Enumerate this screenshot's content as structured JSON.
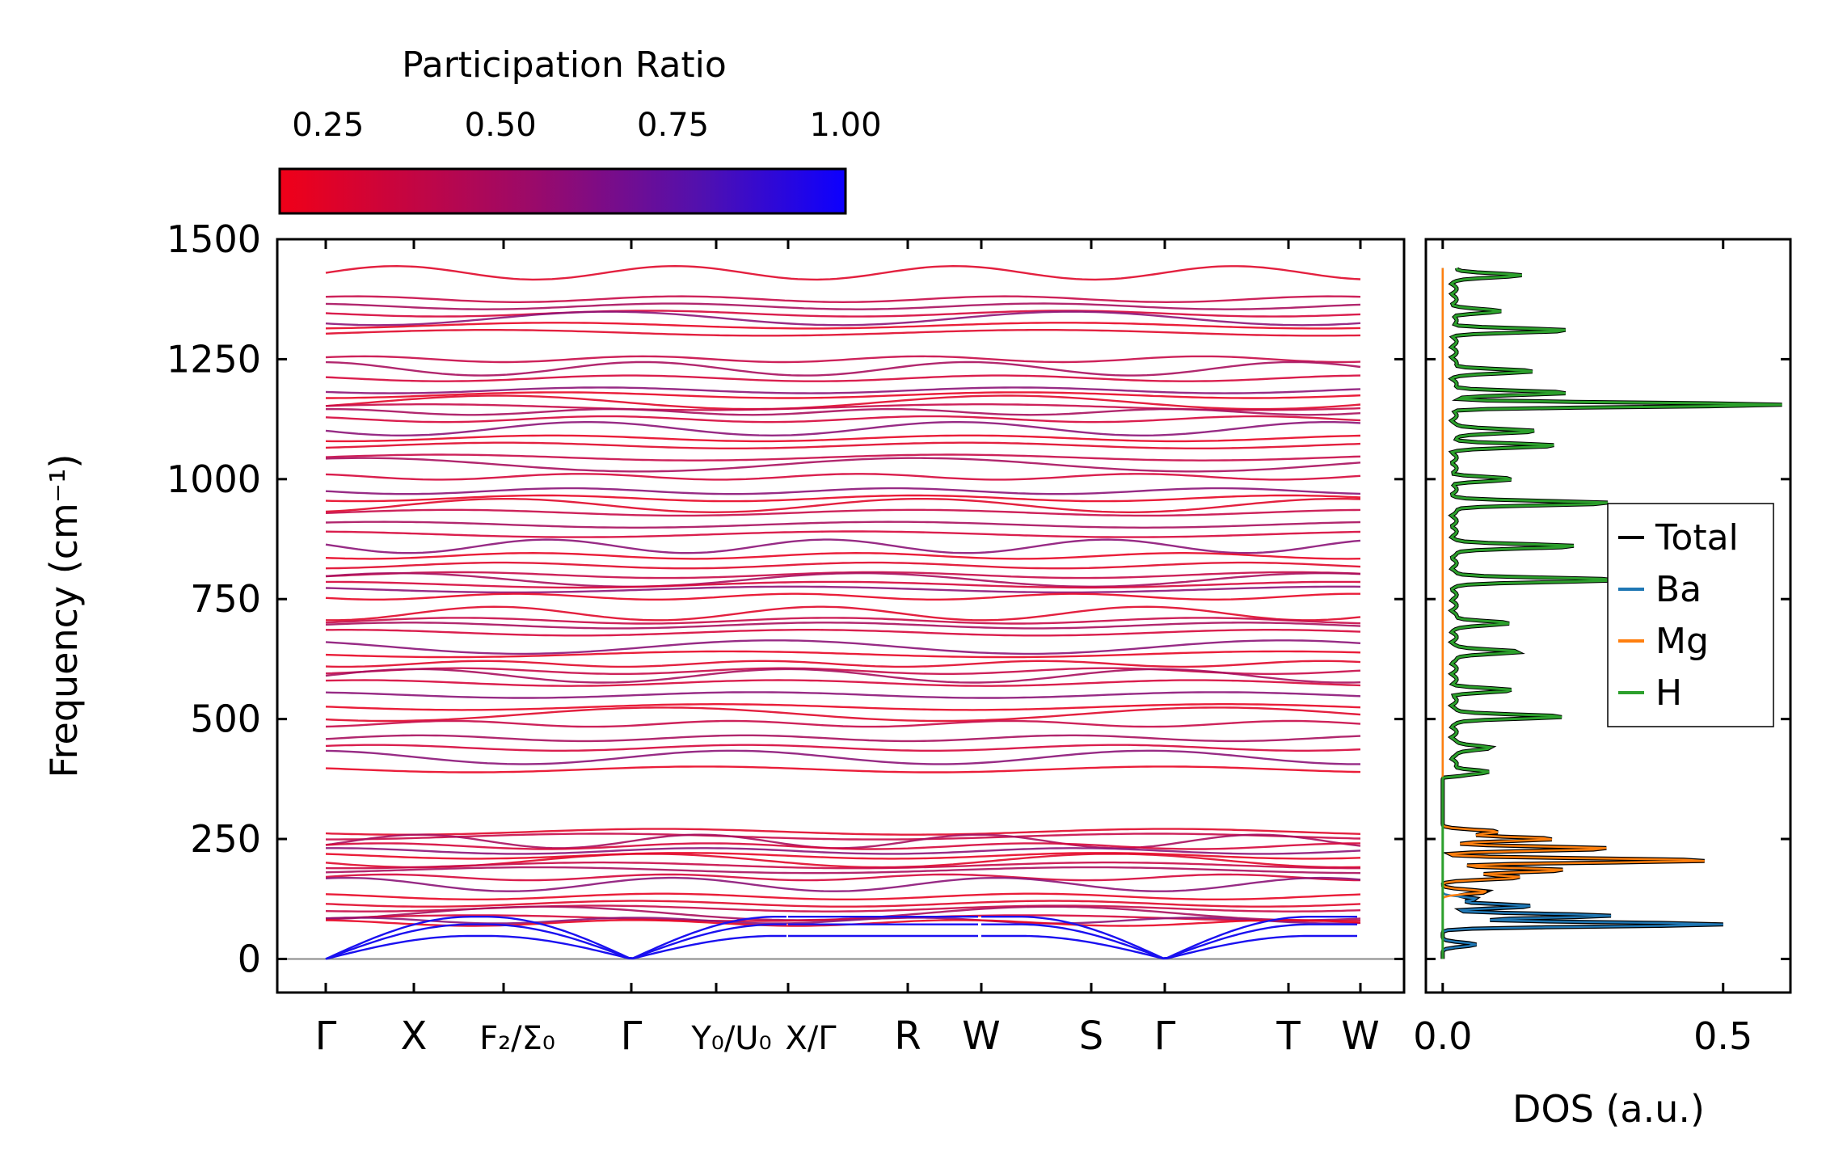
{
  "chart_data": [
    {
      "type": "line",
      "title": "",
      "ylabel": "Frequency (cm⁻¹)",
      "xlabel": "",
      "ylim": [
        -70,
        1500
      ],
      "yticks": [
        0,
        250,
        500,
        750,
        1000,
        1250,
        1500
      ],
      "ytick_labels": [
        "0",
        "250",
        "500",
        "750",
        "1000",
        "1250",
        "1500"
      ],
      "path_labels": [
        "Γ",
        "X",
        "F₂/Σ₀",
        "Γ",
        "Y₀/U₀",
        "X/Γ",
        "R",
        "W",
        "S",
        "Γ",
        "T",
        "W"
      ],
      "colorbar": {
        "label": "Participation Ratio",
        "range": [
          0.18,
          1.0
        ],
        "ticks": [
          0.25,
          0.5,
          0.75,
          1.0
        ],
        "tick_labels": [
          "0.25",
          "0.50",
          "0.75",
          "1.00"
        ],
        "low_color": "#ee0022",
        "high_color": "#1400ff"
      },
      "acoustic_branch_color": "#1a10f0",
      "optical_band_color": "#d40a3c",
      "zero_line_color": "#888888",
      "optical_bands_cm1": [
        1430,
        1375,
        1360,
        1345,
        1335,
        1320,
        1305,
        1250,
        1230,
        1210,
        1185,
        1175,
        1160,
        1150,
        1140,
        1125,
        1105,
        1085,
        1070,
        1045,
        1030,
        1005,
        975,
        960,
        945,
        930,
        905,
        885,
        860,
        840,
        820,
        800,
        790,
        780,
        770,
        755,
        720,
        705,
        695,
        680,
        650,
        635,
        615,
        600,
        590,
        575,
        550,
        525,
        510,
        490,
        460,
        440,
        420,
        395,
        265,
        255,
        245,
        235,
        225,
        215,
        205,
        195,
        185,
        170,
        155,
        130,
        115,
        105,
        95,
        85,
        80,
        75
      ]
    },
    {
      "type": "line",
      "title": "",
      "xlabel": "DOS (a.u.)",
      "ylabel": "",
      "xlim": [
        -0.03,
        0.62
      ],
      "ylim": [
        -70,
        1500
      ],
      "xticks": [
        0.0,
        0.5
      ],
      "xtick_labels": [
        "0.0",
        "0.5"
      ],
      "legend": {
        "placement": "center-right",
        "entries": [
          "Total",
          "Ba",
          "Mg",
          "H"
        ]
      },
      "series": [
        {
          "name": "Total",
          "color": "#000000"
        },
        {
          "name": "Ba",
          "color": "#1f77b4"
        },
        {
          "name": "Mg",
          "color": "#ff7f0e"
        },
        {
          "name": "H",
          "color": "#2ca02c"
        }
      ],
      "peaks": [
        {
          "element": "Ba",
          "points": [
            [
              30,
              0.06
            ],
            [
              72,
              0.5
            ],
            [
              90,
              0.3
            ],
            [
              110,
              0.16
            ],
            [
              125,
              0.06
            ]
          ]
        },
        {
          "element": "Mg",
          "points": [
            [
              140,
              0.08
            ],
            [
              170,
              0.14
            ],
            [
              185,
              0.22
            ],
            [
              205,
              0.48
            ],
            [
              230,
              0.3
            ],
            [
              250,
              0.2
            ],
            [
              265,
              0.1
            ]
          ]
        },
        {
          "element": "H",
          "points": [
            [
              390,
              0.06
            ],
            [
              440,
              0.07
            ],
            [
              505,
              0.2
            ],
            [
              560,
              0.1
            ],
            [
              640,
              0.12
            ],
            [
              700,
              0.1
            ],
            [
              790,
              0.3
            ],
            [
              860,
              0.22
            ],
            [
              950,
              0.28
            ],
            [
              1000,
              0.1
            ],
            [
              1070,
              0.18
            ],
            [
              1100,
              0.15
            ],
            [
              1155,
              0.58
            ],
            [
              1180,
              0.2
            ],
            [
              1225,
              0.14
            ],
            [
              1310,
              0.2
            ],
            [
              1350,
              0.08
            ],
            [
              1425,
              0.12
            ]
          ]
        }
      ]
    }
  ]
}
